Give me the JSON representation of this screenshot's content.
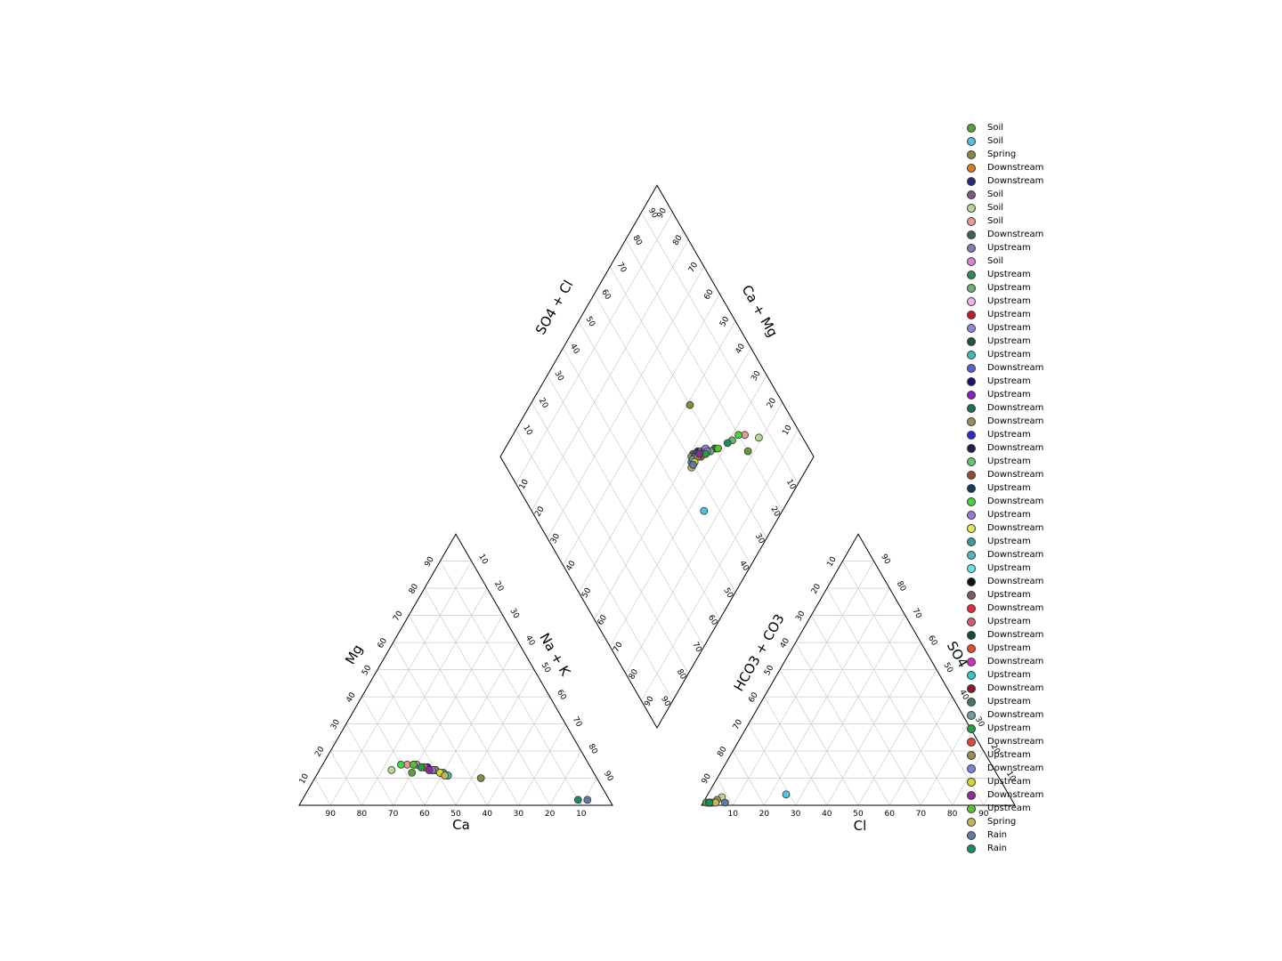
{
  "chart_data": {
    "type": "scatter",
    "subtype": "piper-diagram",
    "axis_labels": {
      "cation_bottom": "Ca",
      "cation_left": "Mg",
      "cation_right": "Na + K",
      "anion_bottom": "Cl",
      "anion_left": "HCO3 + CO3",
      "anion_right": "SO4",
      "diamond_upper_left": "SO4 + Cl",
      "diamond_upper_right": "Ca + Mg"
    },
    "tick_labels": [
      "10",
      "20",
      "30",
      "40",
      "50",
      "60",
      "70",
      "80",
      "90"
    ],
    "grid": true,
    "legend_position": "right",
    "series": [
      {
        "name": "Soil",
        "color": "#5f9e3a",
        "cation": [
          58,
          12
        ],
        "anion": [
          1,
          1
        ],
        "diamond": [
          22,
          80
        ]
      },
      {
        "name": "Soil",
        "color": "#4fc4e8",
        "cation": [
          47,
          11
        ],
        "anion": [
          25,
          4
        ],
        "diamond": [
          25,
          55
        ]
      },
      {
        "name": "Spring",
        "color": "#8a8a3c",
        "cation": [
          37,
          10
        ],
        "anion": [
          2,
          1
        ],
        "diamond": [
          49,
          70
        ]
      },
      {
        "name": "Downstream",
        "color": "#e07b1a",
        "cation": [
          54,
          14
        ],
        "anion": [
          2,
          1
        ],
        "diamond": [
          33,
          70
        ]
      },
      {
        "name": "Downstream",
        "color": "#232c7a",
        "cation": [
          52,
          14
        ],
        "anion": [
          2,
          1
        ],
        "diamond": [
          38,
          64
        ]
      },
      {
        "name": "Soil",
        "color": "#7b5a86",
        "cation": [
          55,
          15
        ],
        "anion": [
          2,
          1
        ],
        "diamond": [
          39,
          62
        ]
      },
      {
        "name": "Soil",
        "color": "#b8d88e",
        "cation": [
          64,
          13
        ],
        "anion": [
          5,
          3
        ],
        "diamond": [
          21,
          86
        ]
      },
      {
        "name": "Soil",
        "color": "#e89a96",
        "cation": [
          58,
          15
        ],
        "anion": [
          3,
          1
        ],
        "diamond": [
          26,
          82
        ]
      },
      {
        "name": "Downstream",
        "color": "#3a6650",
        "cation": [
          51,
          13
        ],
        "anion": [
          2,
          1
        ],
        "diamond": [
          33,
          70
        ]
      },
      {
        "name": "Upstream",
        "color": "#7d7ebb",
        "cation": [
          50,
          13
        ],
        "anion": [
          2,
          1
        ],
        "diamond": [
          37,
          65
        ]
      },
      {
        "name": "Soil",
        "color": "#e27fcf",
        "cation": [
          55,
          15
        ],
        "anion": [
          2,
          1
        ],
        "diamond": [
          38,
          62
        ]
      },
      {
        "name": "Upstream",
        "color": "#2e8a56",
        "cation": [
          53,
          14
        ],
        "anion": [
          2,
          1
        ],
        "diamond": [
          34,
          68
        ]
      },
      {
        "name": "Upstream",
        "color": "#6fb06f",
        "cation": [
          54,
          14
        ],
        "anion": [
          2,
          1
        ],
        "diamond": [
          29,
          77
        ]
      },
      {
        "name": "Upstream",
        "color": "#e8b6e8",
        "cation": [
          52,
          14
        ],
        "anion": [
          2,
          1
        ],
        "diamond": [
          35,
          66
        ]
      },
      {
        "name": "Upstream",
        "color": "#c41c28",
        "cation": [
          53,
          14
        ],
        "anion": [
          2,
          1
        ],
        "diamond": [
          36,
          66
        ]
      },
      {
        "name": "Upstream",
        "color": "#8a8adf",
        "cation": [
          52,
          14
        ],
        "anion": [
          2,
          1
        ],
        "diamond": [
          36,
          67
        ]
      },
      {
        "name": "Upstream",
        "color": "#1c5a38",
        "cation": [
          53,
          14
        ],
        "anion": [
          2,
          1
        ],
        "diamond": [
          35,
          67
        ]
      },
      {
        "name": "Upstream",
        "color": "#36c2b2",
        "cation": [
          51,
          13
        ],
        "anion": [
          2,
          1
        ],
        "diamond": [
          37,
          64
        ]
      },
      {
        "name": "Downstream",
        "color": "#5a5ed6",
        "cation": [
          50,
          13
        ],
        "anion": [
          2,
          1
        ],
        "diamond": [
          38,
          62
        ]
      },
      {
        "name": "Upstream",
        "color": "#1f1276",
        "cation": [
          52,
          14
        ],
        "anion": [
          2,
          1
        ],
        "diamond": [
          37,
          64
        ]
      },
      {
        "name": "Upstream",
        "color": "#8a1ec2",
        "cation": [
          51,
          13
        ],
        "anion": [
          2,
          1
        ],
        "diamond": [
          37,
          63
        ]
      },
      {
        "name": "Downstream",
        "color": "#137553",
        "cation": [
          50,
          13
        ],
        "anion": [
          2,
          1
        ],
        "diamond": [
          38,
          63
        ]
      },
      {
        "name": "Downstream",
        "color": "#9c8c66",
        "cation": [
          49,
          12
        ],
        "anion": [
          2,
          1
        ],
        "diamond": [
          39,
          61
        ]
      },
      {
        "name": "Upstream",
        "color": "#3425d6",
        "cation": [
          52,
          14
        ],
        "anion": [
          2,
          1
        ],
        "diamond": [
          36,
          65
        ]
      },
      {
        "name": "Downstream",
        "color": "#2c1d4e",
        "cation": [
          51,
          13
        ],
        "anion": [
          2,
          1
        ],
        "diamond": [
          36,
          64
        ]
      },
      {
        "name": "Upstream",
        "color": "#69c665",
        "cation": [
          53,
          14
        ],
        "anion": [
          2,
          1
        ],
        "diamond": [
          34,
          68
        ]
      },
      {
        "name": "Downstream",
        "color": "#9a4a2c",
        "cation": [
          50,
          13
        ],
        "anion": [
          2,
          1
        ],
        "diamond": [
          37,
          64
        ]
      },
      {
        "name": "Upstream",
        "color": "#123a62",
        "cation": [
          51,
          13
        ],
        "anion": [
          2,
          1
        ],
        "diamond": [
          38,
          62
        ]
      },
      {
        "name": "Downstream",
        "color": "#41d73d",
        "cation": [
          60,
          15
        ],
        "anion": [
          2,
          1
        ],
        "diamond": [
          28,
          80
        ]
      },
      {
        "name": "Upstream",
        "color": "#9d78d6",
        "cation": [
          56,
          15
        ],
        "anion": [
          2,
          1
        ],
        "diamond": [
          35,
          67
        ]
      },
      {
        "name": "Downstream",
        "color": "#e6e650",
        "cation": [
          49,
          12
        ],
        "anion": [
          2,
          1
        ],
        "diamond": [
          37,
          64
        ]
      },
      {
        "name": "Upstream",
        "color": "#3b9fa0",
        "cation": [
          48,
          12
        ],
        "anion": [
          2,
          1
        ],
        "diamond": [
          38,
          60
        ]
      },
      {
        "name": "Downstream",
        "color": "#55b8b8",
        "cation": [
          49,
          12
        ],
        "anion": [
          2,
          1
        ],
        "diamond": [
          37,
          61
        ]
      },
      {
        "name": "Upstream",
        "color": "#64e6e6",
        "cation": [
          50,
          13
        ],
        "anion": [
          2,
          1
        ],
        "diamond": [
          37,
          63
        ]
      },
      {
        "name": "Downstream",
        "color": "#111111",
        "cation": [
          51,
          13
        ],
        "anion": [
          2,
          1
        ],
        "diamond": [
          38,
          62
        ]
      },
      {
        "name": "Upstream",
        "color": "#7a5a66",
        "cation": [
          52,
          13
        ],
        "anion": [
          2,
          1
        ],
        "diamond": [
          37,
          63
        ]
      },
      {
        "name": "Downstream",
        "color": "#e02c3c",
        "cation": [
          51,
          13
        ],
        "anion": [
          2,
          1
        ],
        "diamond": [
          36,
          64
        ]
      },
      {
        "name": "Upstream",
        "color": "#d45c72",
        "cation": [
          53,
          14
        ],
        "anion": [
          2,
          1
        ],
        "diamond": [
          36,
          65
        ]
      },
      {
        "name": "Downstream",
        "color": "#134c3a",
        "cation": [
          50,
          13
        ],
        "anion": [
          2,
          1
        ],
        "diamond": [
          37,
          63
        ]
      },
      {
        "name": "Upstream",
        "color": "#e64c2c",
        "cation": [
          52,
          13
        ],
        "anion": [
          2,
          1
        ],
        "diamond": [
          36,
          64
        ]
      },
      {
        "name": "Downstream",
        "color": "#d62cc6",
        "cation": [
          51,
          13
        ],
        "anion": [
          2,
          1
        ],
        "diamond": [
          37,
          63
        ]
      },
      {
        "name": "Upstream",
        "color": "#30c8c8",
        "cation": [
          47,
          11
        ],
        "anion": [
          2,
          1
        ],
        "diamond": [
          37,
          60
        ]
      },
      {
        "name": "Downstream",
        "color": "#8c1c32",
        "cation": [
          51,
          13
        ],
        "anion": [
          2,
          1
        ],
        "diamond": [
          37,
          64
        ]
      },
      {
        "name": "Upstream",
        "color": "#40796c",
        "cation": [
          50,
          13
        ],
        "anion": [
          2,
          1
        ],
        "diamond": [
          38,
          62
        ]
      },
      {
        "name": "Downstream",
        "color": "#6d9c9c",
        "cation": [
          49,
          12
        ],
        "anion": [
          2,
          1
        ],
        "diamond": [
          38,
          61
        ]
      },
      {
        "name": "Upstream",
        "color": "#22a23c",
        "cation": [
          54,
          14
        ],
        "anion": [
          2,
          1
        ],
        "diamond": [
          35,
          66
        ]
      },
      {
        "name": "Downstream",
        "color": "#e4463c",
        "cation": [
          51,
          13
        ],
        "anion": [
          2,
          1
        ],
        "diamond": [
          37,
          64
        ]
      },
      {
        "name": "Upstream",
        "color": "#9c8c56",
        "cation": [
          50,
          13
        ],
        "anion": [
          4,
          2
        ],
        "diamond": [
          37,
          63
        ]
      },
      {
        "name": "Downstream",
        "color": "#7c86d6",
        "cation": [
          51,
          13
        ],
        "anion": [
          2,
          1
        ],
        "diamond": [
          37,
          64
        ]
      },
      {
        "name": "Upstream",
        "color": "#d6d62c",
        "cation": [
          49,
          12
        ],
        "anion": [
          3,
          1
        ],
        "diamond": [
          37,
          61
        ]
      },
      {
        "name": "Downstream",
        "color": "#8c2c9c",
        "cation": [
          52,
          13
        ],
        "anion": [
          2,
          1
        ],
        "diamond": [
          37,
          64
        ]
      },
      {
        "name": "Upstream",
        "color": "#56c62c",
        "cation": [
          56,
          15
        ],
        "anion": [
          2,
          1
        ],
        "diamond": [
          32,
          71
        ]
      },
      {
        "name": "Spring",
        "color": "#c8b458",
        "cation": [
          48,
          11
        ],
        "anion": [
          4,
          1
        ],
        "diamond": [
          37,
          59
        ]
      },
      {
        "name": "Rain",
        "color": "#5a7ca6",
        "cation": [
          7,
          2
        ],
        "anion": [
          7,
          1
        ],
        "diamond": [
          37,
          60
        ]
      },
      {
        "name": "Rain",
        "color": "#1f8c5c",
        "cation": [
          10,
          2
        ],
        "anion": [
          2,
          1
        ],
        "diamond": [
          30,
          75
        ]
      }
    ]
  }
}
